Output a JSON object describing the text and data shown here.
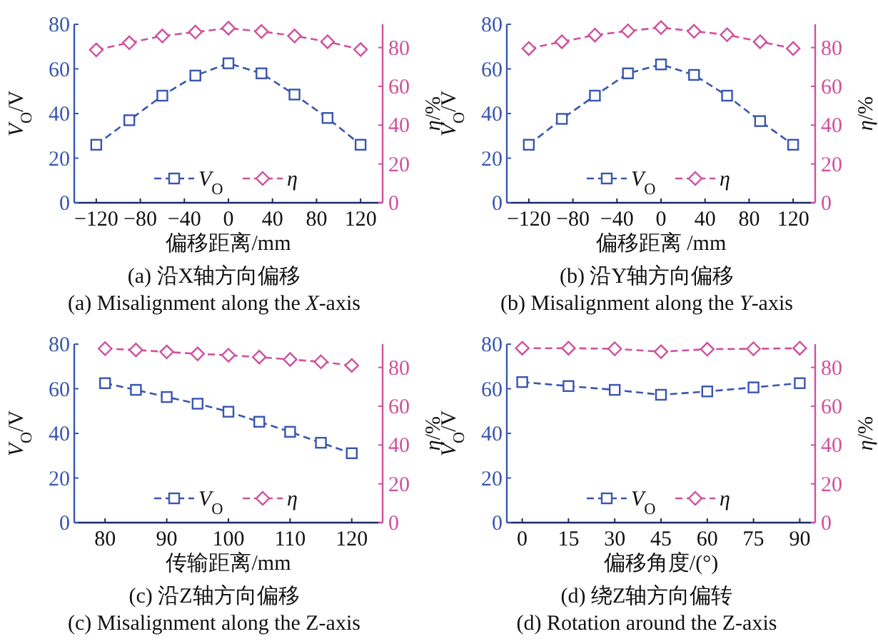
{
  "chart_data": [
    {
      "type": "line",
      "title": "(a) 沿X轴方向偏移",
      "subtitle": "(a) Misalignment along the *X*-axis",
      "xlabel": "偏移距离/mm",
      "ylabel": "*V*$_{O}$/V",
      "y2label": "*η*/%",
      "xlim": [
        -140,
        140
      ],
      "xticks": [
        -120,
        -80,
        -40,
        0,
        40,
        80,
        120
      ],
      "ylim": [
        0,
        80
      ],
      "yticks": [
        0,
        20,
        40,
        60,
        80
      ],
      "y2lim": [
        0,
        92
      ],
      "y2ticks": [
        0,
        20,
        40,
        60,
        80
      ],
      "grid": false,
      "legend": "bottom",
      "line_style": "dashed",
      "x": [
        -120,
        -90,
        -60,
        -30,
        0,
        30,
        60,
        90,
        120
      ],
      "series": [
        {
          "name": "*V*$_{O}$",
          "color": "#3a56b0",
          "marker": "square",
          "values": [
            26,
            37,
            48,
            57,
            62.5,
            58,
            48.5,
            38,
            26
          ]
        },
        {
          "name": "*η*",
          "color": "#d0509e",
          "marker": "diamond",
          "axis": "y2",
          "values": [
            78.8,
            82.5,
            86,
            88,
            90,
            88.3,
            86,
            83,
            79
          ]
        }
      ]
    },
    {
      "type": "line",
      "title": "(b) 沿Y轴方向偏移",
      "subtitle": "(b) Misalignment along the *Y*-axis",
      "xlabel": "偏移距离 /mm",
      "ylabel": "*V*$_{O}$/V",
      "y2label": "*η*/%",
      "xlim": [
        -140,
        140
      ],
      "xticks": [
        -120,
        -80,
        -40,
        0,
        40,
        80,
        120
      ],
      "ylim": [
        0,
        80
      ],
      "yticks": [
        0,
        20,
        40,
        60,
        80
      ],
      "y2lim": [
        0,
        92
      ],
      "y2ticks": [
        0,
        20,
        40,
        60,
        80
      ],
      "grid": false,
      "legend": "bottom",
      "line_style": "dashed",
      "x": [
        -120,
        -90,
        -60,
        -30,
        0,
        30,
        60,
        90,
        120
      ],
      "series": [
        {
          "name": "*V*$_{O}$",
          "color": "#3a56b0",
          "marker": "square",
          "values": [
            26,
            37.6,
            48,
            58,
            62,
            57.3,
            48,
            36.6,
            26
          ]
        },
        {
          "name": "*η*",
          "color": "#d0509e",
          "marker": "diamond",
          "axis": "y2",
          "values": [
            79.5,
            83,
            86.4,
            88.6,
            90.3,
            88.4,
            86.6,
            83,
            79.5
          ]
        }
      ]
    },
    {
      "type": "line",
      "title": "(c) 沿Z轴方向偏移",
      "subtitle": "(c) Misalignment along the Z-axis",
      "xlabel": "传输距离/mm",
      "ylabel": "*V*$_{O}$/V",
      "y2label": "*η*/%",
      "xlim": [
        75,
        125
      ],
      "xticks": [
        80,
        90,
        100,
        110,
        120
      ],
      "ylim": [
        0,
        80
      ],
      "yticks": [
        0,
        20,
        40,
        60,
        80
      ],
      "y2lim": [
        0,
        92
      ],
      "y2ticks": [
        0,
        20,
        40,
        60,
        80
      ],
      "grid": false,
      "legend": "bottom",
      "line_style": "dashed",
      "x": [
        80,
        85,
        90,
        95,
        100,
        105,
        110,
        115,
        120
      ],
      "series": [
        {
          "name": "*V*$_{O}$",
          "color": "#3a56b0",
          "marker": "square",
          "values": [
            62.5,
            59.5,
            56.3,
            53.3,
            49.7,
            45.2,
            40.7,
            35.8,
            31.1
          ]
        },
        {
          "name": "*η*",
          "color": "#d0509e",
          "marker": "diamond",
          "axis": "y2",
          "values": [
            89.7,
            89,
            88,
            87,
            86.3,
            85.3,
            84.1,
            82.9,
            81
          ]
        }
      ]
    },
    {
      "type": "line",
      "title": "(d) 绕Z轴方向偏转",
      "subtitle": "(d) Rotation around the Z-axis",
      "xlabel": "偏移角度/(°)",
      "ylabel": "*V*$_{O}$/V",
      "y2label": "*η*/%",
      "xlim": [
        -5,
        95
      ],
      "xticks": [
        0,
        15,
        30,
        45,
        60,
        75,
        90
      ],
      "ylim": [
        0,
        80
      ],
      "yticks": [
        0,
        20,
        40,
        60,
        80
      ],
      "y2lim": [
        0,
        92
      ],
      "y2ticks": [
        0,
        20,
        40,
        60,
        80
      ],
      "grid": false,
      "legend": "bottom",
      "line_style": "dashed",
      "x": [
        0,
        15,
        30,
        45,
        60,
        75,
        90
      ],
      "series": [
        {
          "name": "*V*$_{O}$",
          "color": "#3a56b0",
          "marker": "square",
          "values": [
            63,
            61.2,
            59.5,
            57.3,
            58.8,
            60.6,
            62.5
          ]
        },
        {
          "name": "*η*",
          "color": "#d0509e",
          "marker": "diamond",
          "axis": "y2",
          "values": [
            89.9,
            89.9,
            89.6,
            88.1,
            89.4,
            89.6,
            89.9
          ]
        }
      ]
    }
  ]
}
